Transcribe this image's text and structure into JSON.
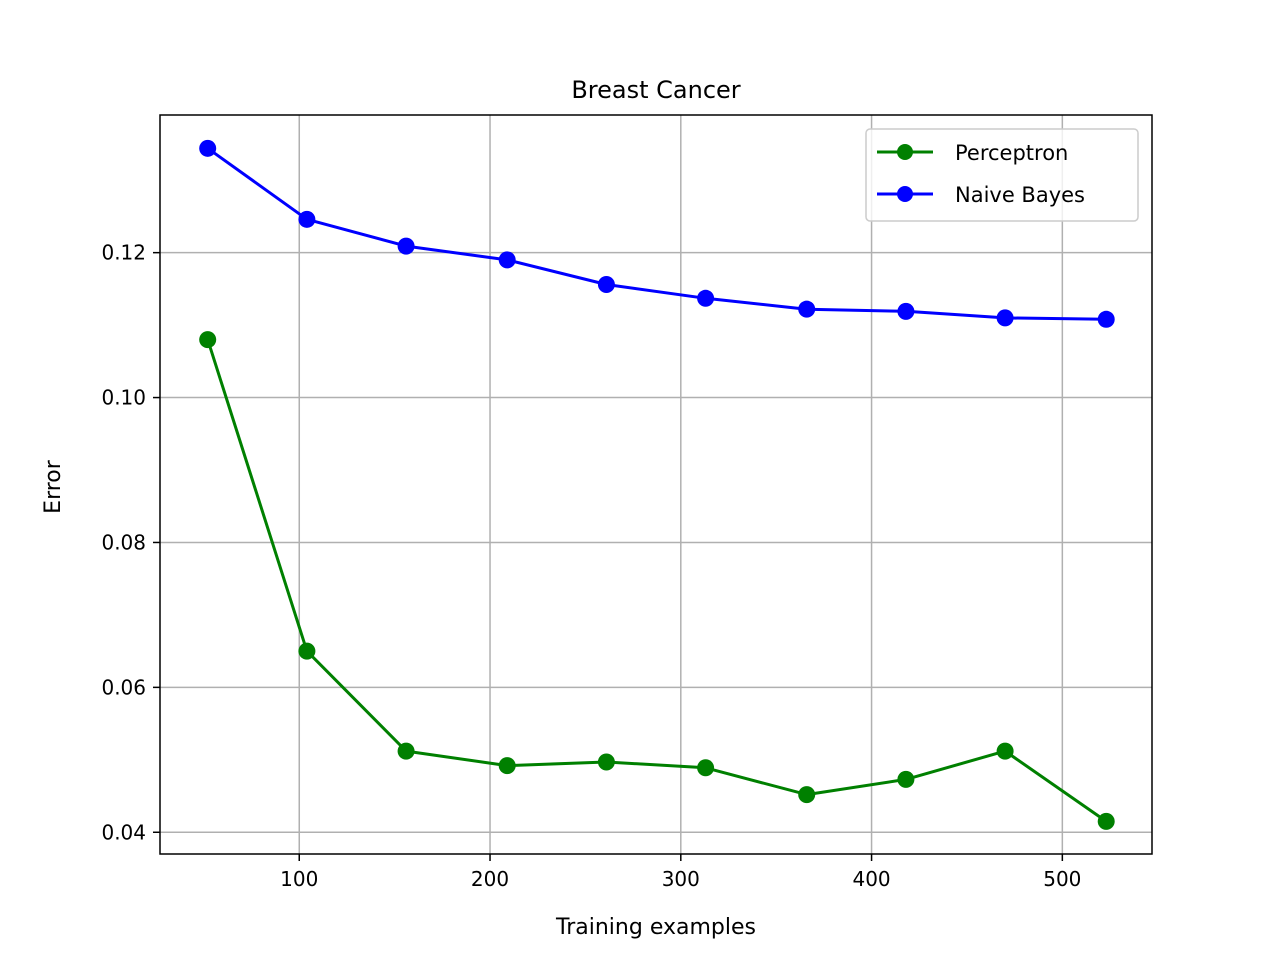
{
  "chart_data": {
    "type": "line",
    "title": "Breast Cancer",
    "xlabel": "Training examples",
    "ylabel": "Error",
    "xlim": [
      27,
      547
    ],
    "ylim": [
      0.037,
      0.139
    ],
    "xticks": [
      100,
      200,
      300,
      400,
      500
    ],
    "yticks": [
      0.04,
      0.06,
      0.08,
      0.1,
      0.12
    ],
    "ytick_labels": [
      "0.04",
      "0.06",
      "0.08",
      "0.10",
      "0.12"
    ],
    "grid": true,
    "legend_position": "top-right",
    "x": [
      52,
      104,
      156,
      209,
      261,
      313,
      366,
      418,
      470,
      523
    ],
    "series": [
      {
        "name": "Perceptron",
        "color": "#008000",
        "values": [
          0.108,
          0.065,
          0.0512,
          0.0492,
          0.0497,
          0.0489,
          0.0452,
          0.0473,
          0.0512,
          0.0415
        ]
      },
      {
        "name": "Naive Bayes",
        "color": "#0000ff",
        "values": [
          0.1344,
          0.1246,
          0.1209,
          0.119,
          0.1156,
          0.1137,
          0.1122,
          0.1119,
          0.111,
          0.1108
        ]
      }
    ]
  }
}
